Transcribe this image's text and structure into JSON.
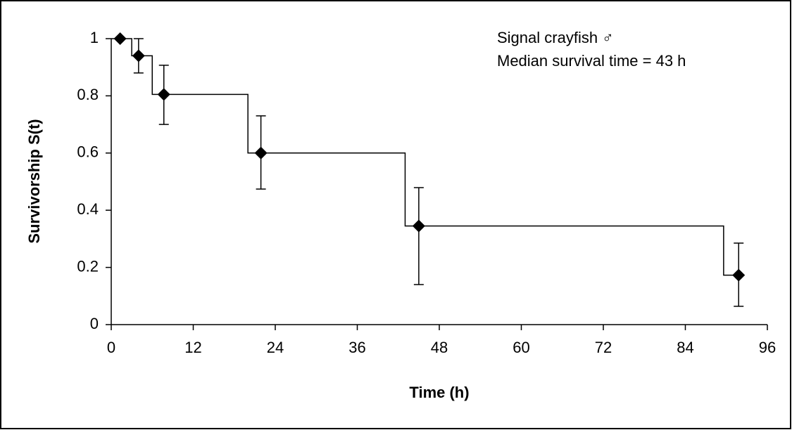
{
  "chart_data": {
    "type": "scatter",
    "x_label": "Time (h)",
    "y_label": "Survivorship S(t)",
    "annotations": [
      "Signal crayfish ♂",
      "Median survival time = 43 h"
    ],
    "x": [
      1.3,
      4,
      7.7,
      21.9,
      45,
      91.8
    ],
    "values": [
      1,
      0.94,
      0.805,
      0.6,
      0.345,
      0.173
    ],
    "lower": [
      null,
      0.88,
      0.7,
      0.474,
      0.14,
      0.064
    ],
    "upper": [
      null,
      1.0,
      0.907,
      0.73,
      0.479,
      0.285
    ],
    "step": {
      "x": [
        0,
        3,
        3,
        6,
        6,
        20,
        20,
        43,
        43,
        89.6,
        89.6,
        91.2
      ],
      "y": [
        1,
        1,
        0.94,
        0.94,
        0.805,
        0.805,
        0.6,
        0.6,
        0.345,
        0.345,
        0.173,
        0.173
      ]
    },
    "color": "#000000",
    "xlim": [
      0,
      96
    ],
    "xticks": [
      0,
      12,
      24,
      36,
      48,
      60,
      72,
      84,
      96
    ],
    "ylim": [
      0,
      1
    ],
    "yticks": [
      0,
      0.2,
      0.4,
      0.6,
      0.8,
      1
    ]
  }
}
